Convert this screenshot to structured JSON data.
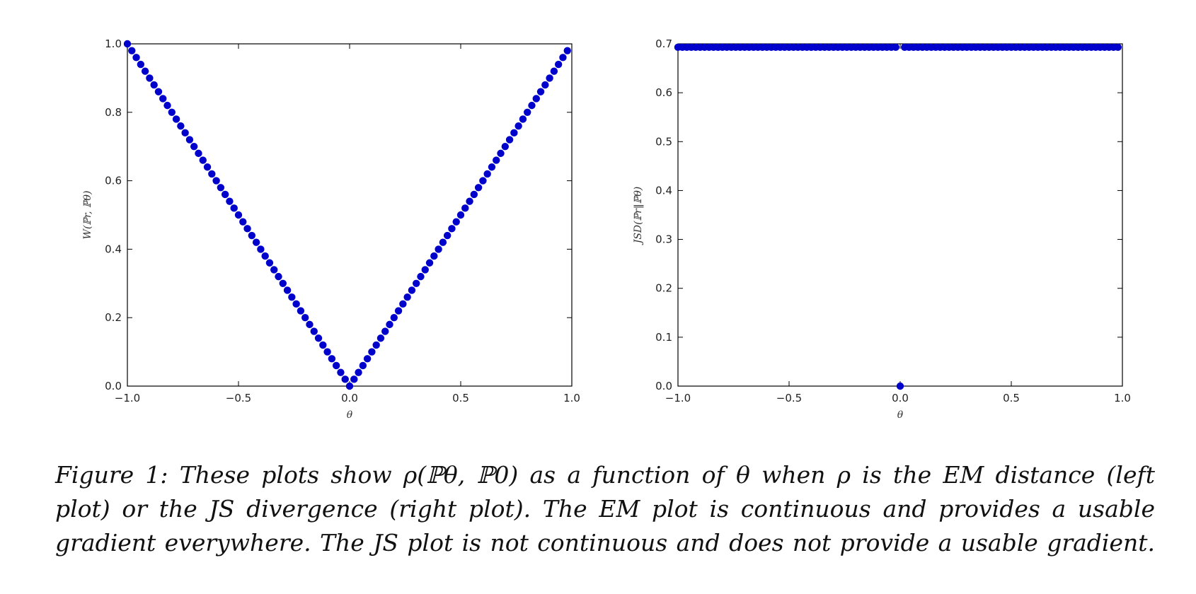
{
  "marker_color": "#0000cc",
  "chart_data": [
    {
      "type": "scatter",
      "title": "",
      "xlabel": "θ",
      "ylabel": "W(ℙr, ℙθ)",
      "xlim": [
        -1.0,
        1.0
      ],
      "ylim": [
        0.0,
        1.0
      ],
      "xticks": [
        "−1.0",
        "−0.5",
        "0.0",
        "0.5",
        "1.0"
      ],
      "yticks": [
        "0.0",
        "0.2",
        "0.4",
        "0.6",
        "0.8",
        "1.0"
      ],
      "x_start": -1.0,
      "x_end": 0.98,
      "x_step": 0.02,
      "function": "abs(theta)"
    },
    {
      "type": "scatter",
      "title": "",
      "xlabel": "θ",
      "ylabel": "JSD(ℙr‖ℙθ)",
      "xlim": [
        -1.0,
        1.0
      ],
      "ylim": [
        0.0,
        0.7
      ],
      "xticks": [
        "−1.0",
        "−0.5",
        "0.0",
        "0.5",
        "1.0"
      ],
      "yticks": [
        "0.0",
        "0.1",
        "0.2",
        "0.3",
        "0.4",
        "0.5",
        "0.6",
        "0.7"
      ],
      "x_start": -1.0,
      "x_end": 0.98,
      "x_step": 0.02,
      "function": "0.693 if theta != 0 else 0.0"
    }
  ],
  "caption": {
    "line1": "Figure 1:  These plots show ρ(ℙθ, ℙ0) as a function of θ when ρ is the EM distance (left",
    "line2": "plot) or the JS divergence (right plot).  The EM plot is continuous and provides a usable",
    "line3": "gradient everywhere. The JS plot is not continuous and does not provide a usable gradient."
  }
}
